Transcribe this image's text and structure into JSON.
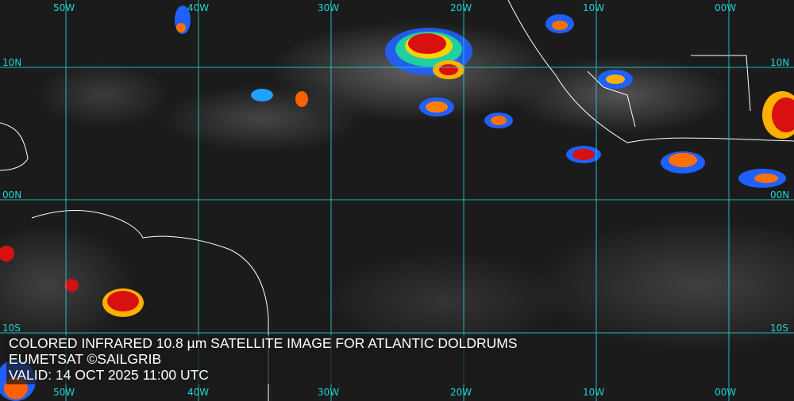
{
  "caption": {
    "line1": "COLORED INFRARED 10.8 µm SATELLITE IMAGE FOR ATLANTIC DOLDRUMS",
    "line2": "EUMETSAT ©SAILGRIB",
    "line3": "VALID:  14 OCT 2025 11:00 UTC"
  },
  "longitude_labels": [
    "50W",
    "40W",
    "30W",
    "20W",
    "10W",
    "00W"
  ],
  "latitude_labels": [
    "10N",
    "00N",
    "10S"
  ],
  "colors": {
    "grid": "#22d3d3",
    "coastline": "#ffffff",
    "cold_cloud_red": "#e01010",
    "cold_cloud_yellow": "#ffd000",
    "cold_cloud_blue": "#1040ff"
  }
}
